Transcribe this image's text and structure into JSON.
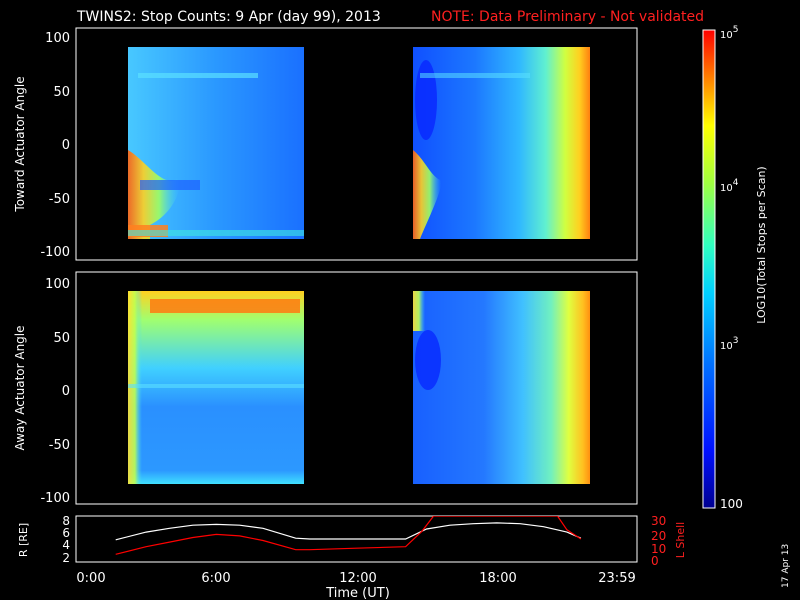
{
  "header": {
    "title": "TWINS2: Stop Counts:  9 Apr (day  99), 2013",
    "note": "NOTE: Data Preliminary - Not validated",
    "note_color": "#ff2020"
  },
  "panels": {
    "top_ylabel": "Toward Actuator Angle",
    "bottom_ylabel": "Away Actuator Angle",
    "y_ticks": [
      "100",
      "50",
      "0",
      "-50",
      "-100"
    ]
  },
  "colorbar": {
    "label": "LOG10(Total Stops per Scan)",
    "ticks": [
      {
        "base": "10",
        "exp": "5"
      },
      {
        "base": "10",
        "exp": "4"
      },
      {
        "base": "10",
        "exp": "3"
      },
      {
        "base": "100",
        "exp": ""
      }
    ]
  },
  "orbit": {
    "r_label": "R [RE]",
    "l_label": "L Shell",
    "r_ticks": [
      "8",
      "6",
      "4",
      "2"
    ],
    "l_ticks": [
      "30",
      "20",
      "10",
      "0"
    ]
  },
  "x_axis": {
    "label": "Time (UT)",
    "ticks": [
      "0:00",
      "6:00",
      "12:00",
      "18:00",
      "23:59"
    ]
  },
  "footer": {
    "date": "17 Apr 13"
  },
  "chart_data": [
    {
      "type": "heatmap",
      "title": "",
      "xlabel": "",
      "ylabel": "Toward Actuator Angle",
      "xlim": [
        0,
        24
      ],
      "ylim": [
        -110,
        110
      ],
      "data_intervals_hours": [
        [
          1.7,
          9.4
        ],
        [
          14.1,
          21.6
        ]
      ],
      "y_data_range": [
        -88,
        88
      ],
      "colorscale": "log",
      "color_range": [
        100,
        100000
      ]
    },
    {
      "type": "heatmap",
      "title": "",
      "xlabel": "Time (UT)",
      "ylabel": "Away Actuator Angle",
      "xlim": [
        0,
        24
      ],
      "ylim": [
        -110,
        110
      ],
      "data_intervals_hours": [
        [
          1.7,
          9.4
        ],
        [
          14.1,
          21.6
        ]
      ],
      "y_data_range": [
        -88,
        88
      ],
      "colorscale": "log",
      "color_range": [
        100,
        100000
      ]
    },
    {
      "type": "line",
      "title": "",
      "xlabel": "Time (UT)",
      "ylabel": "R [RE]",
      "y2label": "L Shell",
      "xlim": [
        0,
        24
      ],
      "ylim": [
        2,
        8
      ],
      "y2lim": [
        0,
        30
      ],
      "series": [
        {
          "name": "R [RE]",
          "color": "#ffffff",
          "x": [
            1.7,
            3,
            4,
            5,
            6,
            7,
            8,
            9.4,
            10,
            12,
            14.1,
            15,
            16,
            17,
            18,
            19,
            20,
            21,
            21.6
          ],
          "y": [
            4.9,
            5.9,
            6.4,
            6.8,
            6.9,
            6.8,
            6.4,
            5.1,
            5.0,
            5.0,
            5.0,
            6.3,
            6.8,
            7.0,
            7.1,
            7.0,
            6.6,
            5.9,
            5.1
          ]
        },
        {
          "name": "L Shell",
          "color": "#ff0000",
          "x": [
            1.7,
            3,
            4,
            5,
            6,
            7,
            8,
            9.4,
            10,
            12,
            14.1,
            14.8,
            15.3,
            20.6,
            21,
            21.3,
            21.6
          ],
          "y": [
            5,
            10,
            13,
            16,
            18,
            17,
            14,
            8,
            8,
            9,
            10,
            20,
            30,
            30,
            21,
            18,
            15
          ]
        }
      ]
    }
  ]
}
